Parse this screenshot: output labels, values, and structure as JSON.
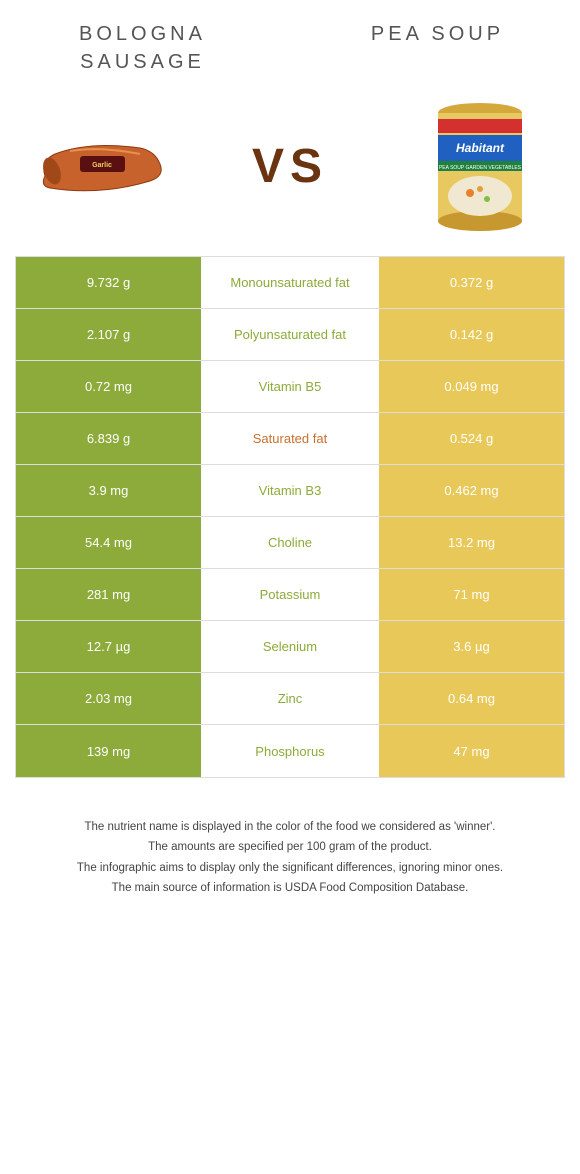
{
  "header": {
    "left_title": "BOLOGNA SAUSAGE",
    "right_title": "PEA SOUP"
  },
  "vs_label": "VS",
  "colors": {
    "left_col": "#8cab3a",
    "right_col": "#e9c85a",
    "winner_left": "#8cab3a",
    "winner_right": "#c96f2e",
    "vs_text": "#6b3410"
  },
  "rows": [
    {
      "left": "9.732 g",
      "label": "Monounsaturated fat",
      "right": "0.372 g",
      "winner": "left"
    },
    {
      "left": "2.107 g",
      "label": "Polyunsaturated fat",
      "right": "0.142 g",
      "winner": "left"
    },
    {
      "left": "0.72 mg",
      "label": "Vitamin B5",
      "right": "0.049 mg",
      "winner": "left"
    },
    {
      "left": "6.839 g",
      "label": "Saturated fat",
      "right": "0.524 g",
      "winner": "right"
    },
    {
      "left": "3.9 mg",
      "label": "Vitamin B3",
      "right": "0.462 mg",
      "winner": "left"
    },
    {
      "left": "54.4 mg",
      "label": "Choline",
      "right": "13.2 mg",
      "winner": "left"
    },
    {
      "left": "281 mg",
      "label": "Potassium",
      "right": "71 mg",
      "winner": "left"
    },
    {
      "left": "12.7 µg",
      "label": "Selenium",
      "right": "3.6 µg",
      "winner": "left"
    },
    {
      "left": "2.03 mg",
      "label": "Zinc",
      "right": "0.64 mg",
      "winner": "left"
    },
    {
      "left": "139 mg",
      "label": "Phosphorus",
      "right": "47 mg",
      "winner": "left"
    }
  ],
  "footnotes": [
    "The nutrient name is displayed in the color of the food we considered as 'winner'.",
    "The amounts are specified per 100 gram of the product.",
    "The infographic aims to display only the significant differences, ignoring minor ones.",
    "The main source of information is USDA Food Composition Database."
  ]
}
